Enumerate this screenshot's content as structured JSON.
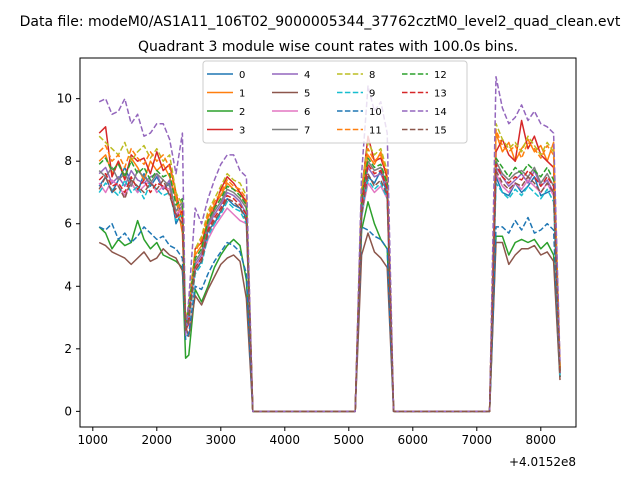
{
  "figure": {
    "suptitle": "Data file: modeM0/AS1A11_106T02_9000005344_37762cztM0_level2_quad_clean.evt",
    "title": "Quadrant 3 module wise count rates with 100.0s bins.",
    "x_offset_label": "+4.0152e8"
  },
  "chart_data": {
    "type": "line",
    "title": "Quadrant 3 module wise count rates with 100.0s bins.",
    "xlabel": "",
    "ylabel": "",
    "x_offset": 401520000,
    "xlim": [
      800,
      8550
    ],
    "ylim": [
      -0.5,
      11.3
    ],
    "xticks": [
      1000,
      2000,
      3000,
      4000,
      5000,
      6000,
      7000,
      8000
    ],
    "yticks": [
      0,
      2,
      4,
      6,
      8,
      10
    ],
    "grid": false,
    "legend": {
      "placement": "top-center",
      "columns": 4
    },
    "x": [
      1100,
      1200,
      1300,
      1400,
      1500,
      1600,
      1700,
      1800,
      1900,
      2000,
      2100,
      2200,
      2300,
      2400,
      2450,
      2500,
      2600,
      2700,
      2800,
      2900,
      3000,
      3100,
      3200,
      3300,
      3400,
      3500,
      5100,
      5200,
      5300,
      5400,
      5500,
      5600,
      5700,
      7200,
      7300,
      7400,
      7500,
      7600,
      7700,
      7800,
      7900,
      8000,
      8100,
      8200,
      8300
    ],
    "series": [
      {
        "name": "0",
        "color": "#1f77b4",
        "dash": "solid",
        "values": [
          7.2,
          7.5,
          7.0,
          7.4,
          7.8,
          7.3,
          7.0,
          7.6,
          7.2,
          7.5,
          7.1,
          7.3,
          6.0,
          6.4,
          2.8,
          3.2,
          4.5,
          4.8,
          5.8,
          6.0,
          6.4,
          6.8,
          6.6,
          6.5,
          6.2,
          0,
          0,
          6.2,
          7.5,
          7.3,
          7.7,
          6.9,
          0,
          0,
          7.5,
          7.0,
          6.9,
          7.3,
          7.0,
          7.2,
          7.5,
          6.9,
          7.0,
          7.1,
          1.2
        ]
      },
      {
        "name": "1",
        "color": "#ff7f0e",
        "dash": "solid",
        "values": [
          8.0,
          8.2,
          7.6,
          8.0,
          7.5,
          8.1,
          7.8,
          7.4,
          8.0,
          7.7,
          7.9,
          7.5,
          6.8,
          5.7,
          2.9,
          3.3,
          5.0,
          5.3,
          6.2,
          6.6,
          6.9,
          7.3,
          7.1,
          7.0,
          6.6,
          0,
          0,
          6.9,
          8.2,
          7.9,
          8.3,
          7.4,
          0,
          0,
          8.9,
          8.3,
          8.6,
          8.0,
          8.4,
          8.7,
          8.3,
          8.5,
          8.0,
          8.6,
          1.4
        ]
      },
      {
        "name": "2",
        "color": "#2ca02c",
        "dash": "solid",
        "values": [
          5.9,
          5.7,
          5.2,
          5.5,
          5.3,
          5.4,
          6.1,
          5.5,
          5.2,
          5.4,
          5.0,
          4.9,
          4.8,
          4.6,
          1.7,
          1.8,
          3.9,
          3.5,
          4.0,
          4.6,
          5.0,
          5.3,
          5.5,
          5.3,
          4.2,
          0,
          0,
          5.8,
          6.7,
          6.0,
          5.5,
          5.2,
          0,
          0,
          5.6,
          5.6,
          5.0,
          5.4,
          5.5,
          5.4,
          5.5,
          5.2,
          5.4,
          5.0,
          1.1
        ]
      },
      {
        "name": "3",
        "color": "#d62728",
        "dash": "solid",
        "values": [
          8.9,
          9.1,
          7.5,
          8.0,
          7.4,
          8.2,
          8.0,
          8.1,
          7.6,
          8.3,
          7.7,
          7.9,
          7.0,
          6.1,
          2.6,
          2.8,
          5.2,
          5.4,
          6.0,
          6.5,
          7.1,
          7.5,
          7.3,
          7.0,
          6.7,
          0,
          0,
          7.0,
          8.8,
          8.0,
          8.1,
          7.5,
          0,
          0,
          8.3,
          8.7,
          8.2,
          8.0,
          9.3,
          8.4,
          8.8,
          8.2,
          8.0,
          7.8,
          1.3
        ]
      },
      {
        "name": "4",
        "color": "#9467bd",
        "dash": "solid",
        "values": [
          7.6,
          7.8,
          7.3,
          7.5,
          7.2,
          7.7,
          7.4,
          7.3,
          7.5,
          7.6,
          7.1,
          7.4,
          6.2,
          6.6,
          2.5,
          3.0,
          4.7,
          5.0,
          5.9,
          6.3,
          6.6,
          7.0,
          6.9,
          6.7,
          6.3,
          0,
          0,
          6.5,
          7.8,
          7.5,
          7.6,
          7.1,
          0,
          0,
          7.8,
          7.5,
          7.2,
          7.4,
          7.6,
          7.3,
          7.7,
          7.2,
          7.4,
          7.0,
          1.2
        ]
      },
      {
        "name": "5",
        "color": "#8c564b",
        "dash": "solid",
        "values": [
          5.4,
          5.3,
          5.1,
          5.0,
          4.9,
          4.7,
          4.9,
          5.1,
          4.8,
          4.9,
          5.2,
          5.0,
          4.9,
          4.5,
          2.7,
          2.4,
          3.7,
          3.4,
          3.9,
          4.3,
          4.7,
          4.9,
          5.0,
          4.8,
          3.6,
          0,
          0,
          5.0,
          5.7,
          5.1,
          4.9,
          4.6,
          0,
          0,
          5.4,
          5.4,
          4.7,
          5.0,
          5.2,
          5.2,
          5.3,
          5.0,
          5.1,
          4.8,
          1.0
        ]
      },
      {
        "name": "6",
        "color": "#e377c2",
        "dash": "solid",
        "values": [
          7.3,
          7.0,
          7.4,
          7.2,
          6.9,
          7.3,
          7.0,
          7.2,
          7.4,
          7.0,
          7.2,
          7.1,
          6.3,
          6.5,
          2.6,
          3.1,
          4.6,
          4.9,
          5.5,
          5.9,
          6.2,
          6.5,
          6.3,
          6.1,
          6.0,
          0,
          0,
          6.3,
          7.3,
          7.0,
          7.2,
          6.8,
          0,
          0,
          7.6,
          7.2,
          7.0,
          7.3,
          7.1,
          7.4,
          7.2,
          7.0,
          7.3,
          6.9,
          1.2
        ]
      },
      {
        "name": "7",
        "color": "#7f7f7f",
        "dash": "solid",
        "values": [
          7.7,
          7.5,
          7.8,
          7.4,
          7.6,
          7.2,
          7.7,
          7.5,
          7.3,
          7.6,
          7.4,
          7.2,
          6.4,
          6.7,
          2.7,
          3.2,
          4.8,
          5.1,
          6.0,
          6.4,
          6.7,
          7.1,
          7.0,
          6.8,
          6.5,
          0,
          0,
          6.7,
          8.0,
          7.7,
          7.8,
          7.2,
          0,
          0,
          8.0,
          7.6,
          7.4,
          7.6,
          7.7,
          7.5,
          7.8,
          7.3,
          7.6,
          7.2,
          1.3
        ]
      },
      {
        "name": "8",
        "color": "#bcbd22",
        "dash": "dashed",
        "values": [
          8.8,
          8.6,
          8.4,
          8.2,
          8.6,
          8.0,
          8.3,
          8.5,
          8.1,
          8.4,
          8.0,
          8.2,
          7.0,
          6.6,
          2.9,
          3.4,
          5.2,
          5.6,
          6.4,
          6.8,
          7.2,
          7.6,
          7.4,
          7.3,
          6.9,
          0,
          0,
          7.1,
          8.6,
          8.2,
          8.4,
          7.7,
          0,
          0,
          9.2,
          8.7,
          8.4,
          8.6,
          8.3,
          8.8,
          8.5,
          8.2,
          8.6,
          8.3,
          1.4
        ]
      },
      {
        "name": "9",
        "color": "#17becf",
        "dash": "dashed",
        "values": [
          7.0,
          7.3,
          7.1,
          6.9,
          7.4,
          7.0,
          7.2,
          6.8,
          7.3,
          7.1,
          6.9,
          7.0,
          6.1,
          6.3,
          2.6,
          2.9,
          4.4,
          4.7,
          5.6,
          6.0,
          6.3,
          6.7,
          6.5,
          6.4,
          6.0,
          0,
          0,
          6.4,
          7.4,
          7.1,
          7.3,
          6.8,
          0,
          0,
          7.3,
          7.0,
          6.8,
          7.1,
          6.9,
          7.2,
          7.0,
          6.8,
          7.1,
          6.7,
          1.1
        ]
      },
      {
        "name": "10",
        "color": "#1f77b4",
        "dash": "dashed",
        "values": [
          5.9,
          5.8,
          6.0,
          5.5,
          5.7,
          5.4,
          5.6,
          5.9,
          5.7,
          5.5,
          5.6,
          5.3,
          5.2,
          4.9,
          2.3,
          2.5,
          4.0,
          3.9,
          4.4,
          4.8,
          5.1,
          5.4,
          5.3,
          5.1,
          4.4,
          0,
          0,
          5.9,
          5.8,
          5.6,
          5.5,
          5.2,
          0,
          0,
          5.9,
          5.9,
          5.7,
          6.1,
          5.8,
          6.2,
          5.7,
          5.8,
          6.0,
          5.8,
          1.1
        ]
      },
      {
        "name": "11",
        "color": "#ff7f0e",
        "dash": "dashed",
        "values": [
          8.3,
          8.5,
          8.0,
          8.2,
          7.8,
          8.4,
          8.1,
          7.9,
          8.3,
          8.0,
          8.2,
          7.8,
          6.9,
          6.2,
          2.8,
          3.4,
          5.1,
          5.5,
          6.3,
          6.7,
          7.0,
          7.4,
          7.2,
          7.1,
          6.8,
          0,
          0,
          7.0,
          8.4,
          8.0,
          8.2,
          7.6,
          0,
          0,
          9.0,
          8.5,
          8.3,
          8.5,
          8.1,
          8.6,
          8.4,
          8.1,
          8.5,
          8.2,
          1.4
        ]
      },
      {
        "name": "12",
        "color": "#2ca02c",
        "dash": "dashed",
        "values": [
          7.9,
          8.1,
          7.7,
          7.9,
          7.5,
          8.0,
          7.6,
          7.8,
          7.4,
          7.7,
          7.5,
          7.6,
          6.6,
          6.8,
          2.7,
          3.3,
          4.9,
          5.2,
          6.1,
          6.5,
          6.8,
          7.2,
          7.1,
          6.9,
          6.6,
          0,
          0,
          6.8,
          8.1,
          7.8,
          7.9,
          7.3,
          0,
          0,
          8.1,
          7.8,
          7.5,
          7.8,
          7.6,
          7.9,
          7.7,
          7.5,
          7.8,
          7.4,
          1.3
        ]
      },
      {
        "name": "13",
        "color": "#d62728",
        "dash": "dashed",
        "values": [
          7.4,
          7.6,
          7.2,
          7.3,
          7.0,
          7.5,
          7.1,
          7.4,
          7.0,
          7.3,
          7.2,
          7.0,
          6.2,
          6.4,
          2.5,
          3.0,
          4.6,
          4.9,
          5.8,
          6.2,
          6.5,
          6.9,
          6.8,
          6.6,
          6.3,
          0,
          0,
          6.6,
          7.9,
          7.6,
          7.7,
          7.1,
          0,
          0,
          7.9,
          7.5,
          7.3,
          7.5,
          7.4,
          7.7,
          7.5,
          7.2,
          7.5,
          7.2,
          1.2
        ]
      },
      {
        "name": "14",
        "color": "#9467bd",
        "dash": "dashed",
        "values": [
          9.9,
          10.0,
          9.5,
          9.6,
          10.0,
          9.2,
          9.5,
          8.8,
          8.9,
          9.2,
          9.2,
          8.7,
          7.6,
          8.9,
          2.4,
          3.6,
          6.5,
          6.0,
          6.8,
          7.4,
          7.9,
          8.2,
          8.2,
          7.7,
          7.5,
          0,
          0,
          7.6,
          10.4,
          9.6,
          9.9,
          8.9,
          0,
          0,
          10.7,
          9.7,
          9.2,
          9.4,
          9.8,
          9.3,
          9.6,
          9.2,
          9.1,
          8.9,
          1.6
        ]
      },
      {
        "name": "15",
        "color": "#8c564b",
        "dash": "dashed",
        "values": [
          7.1,
          7.5,
          7.0,
          7.2,
          6.8,
          7.4,
          7.2,
          7.0,
          7.3,
          7.1,
          7.4,
          6.9,
          6.3,
          6.0,
          2.6,
          2.9,
          4.5,
          4.8,
          5.7,
          6.1,
          6.4,
          6.8,
          6.7,
          6.5,
          6.1,
          0,
          0,
          6.3,
          7.6,
          7.2,
          7.4,
          6.9,
          0,
          0,
          7.7,
          7.3,
          7.1,
          7.3,
          7.2,
          7.5,
          7.3,
          7.0,
          7.3,
          7.0,
          1.1
        ]
      }
    ]
  }
}
